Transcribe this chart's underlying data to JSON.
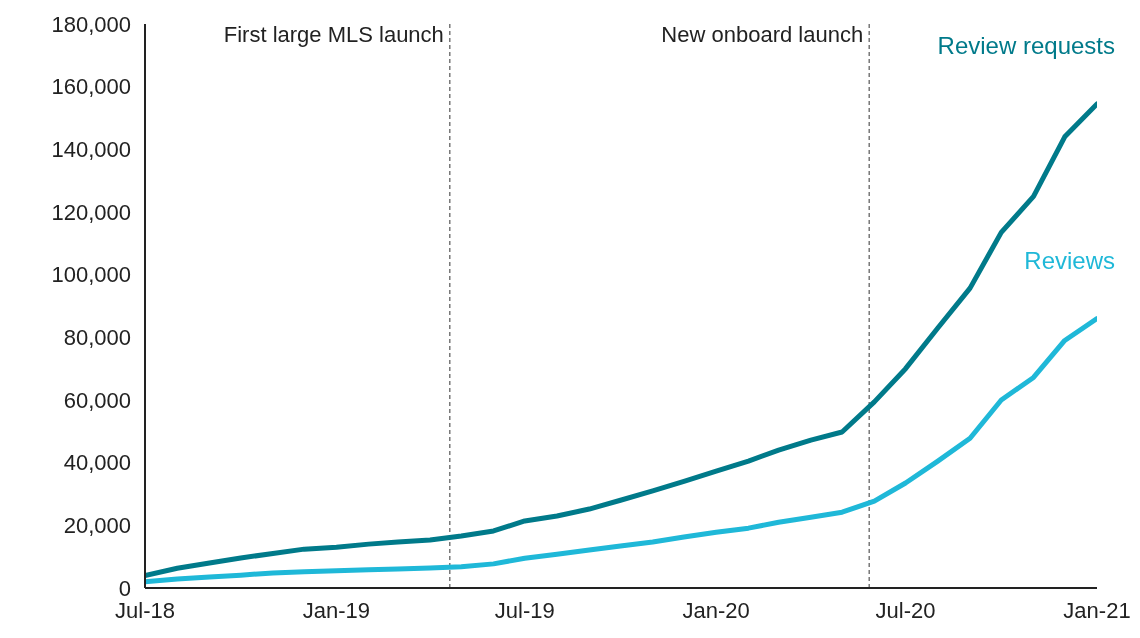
{
  "chart_data": {
    "type": "line",
    "x": [
      "2018-07",
      "2018-08",
      "2018-09",
      "2018-10",
      "2018-11",
      "2018-12",
      "2019-01",
      "2019-02",
      "2019-03",
      "2019-04",
      "2019-05",
      "2019-06",
      "2019-07",
      "2019-08",
      "2019-09",
      "2019-10",
      "2019-11",
      "2019-12",
      "2020-01",
      "2020-02",
      "2020-03",
      "2020-04",
      "2020-05",
      "2020-06",
      "2020-07",
      "2020-08",
      "2020-09",
      "2020-10",
      "2020-11",
      "2020-12",
      "2021-01"
    ],
    "series": [
      {
        "name": "Review requests",
        "color": "#007a8a",
        "values": [
          4000,
          6300,
          8000,
          9600,
          11000,
          12400,
          13000,
          14000,
          14700,
          15300,
          16600,
          18200,
          21400,
          23000,
          25200,
          28000,
          31000,
          34000,
          37300,
          40500,
          44000,
          47200,
          49800,
          59400,
          70000,
          83000,
          95700,
          113500,
          125000,
          144000,
          154500
        ]
      },
      {
        "name": "Reviews",
        "color": "#1fb8d8",
        "values": [
          2000,
          2900,
          3500,
          4100,
          4800,
          5200,
          5500,
          5800,
          6100,
          6400,
          6800,
          7700,
          9500,
          10800,
          12100,
          13400,
          14700,
          16300,
          17800,
          19100,
          21000,
          22600,
          24200,
          27700,
          33500,
          40500,
          47800,
          60000,
          67200,
          79000,
          86000
        ]
      }
    ],
    "xlim": [
      "2018-07",
      "2021-01"
    ],
    "xticks": [
      {
        "value": "2018-07",
        "label": "Jul-18"
      },
      {
        "value": "2019-01",
        "label": "Jan-19"
      },
      {
        "value": "2019-07",
        "label": "Jul-19"
      },
      {
        "value": "2020-01",
        "label": "Jan-20"
      },
      {
        "value": "2020-07",
        "label": "Jul-20"
      },
      {
        "value": "2021-01",
        "label": "Jan-21"
      }
    ],
    "ylim": [
      0,
      180000
    ],
    "yticks": [
      0,
      {
        "value": 20000,
        "label": "20,000"
      },
      {
        "value": 40000,
        "label": "40,000"
      },
      {
        "value": 60000,
        "label": "60,000"
      },
      {
        "value": 80000,
        "label": "80,000"
      },
      {
        "value": 100000,
        "label": "100,000"
      },
      {
        "value": 120000,
        "label": "120,000"
      },
      {
        "value": 140000,
        "label": "140,000"
      },
      {
        "value": 160000,
        "label": "160,000"
      },
      {
        "value": 180000,
        "label": "180,000"
      }
    ],
    "ref_lines": [
      {
        "axis": "x",
        "value": "2019-04-20",
        "label": "First large MLS launch",
        "line_style": "dashed",
        "color": "#333333"
      },
      {
        "axis": "x",
        "value": "2020-05-27",
        "label": "New onboard launch",
        "line_style": "dashed",
        "color": "#333333"
      }
    ],
    "grid": false,
    "legend": false,
    "marker": "none",
    "line_style": "solid"
  }
}
